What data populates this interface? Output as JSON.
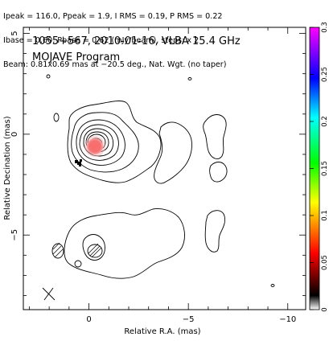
{
  "header": {
    "line1": "Ipeak = 116.0, Ppeak = 1.9, I RMS = 0.19, P RMS = 0.22",
    "line2": "Ibase = 0.60, Pbase = 0.62 (mJy/beam), steps: x 2",
    "line3": "Beam: 0.81x0.69 mas at −20.5 deg., Nat. Wgt. (no taper)"
  },
  "chart_data": {
    "type": "contour",
    "title": "1055+567, 2010-01-16, VLBA 15.4 GHz",
    "subtitle": "MOJAVE Program",
    "xlabel": "Relative R.A. (mas)",
    "ylabel": "Relative Decination (mas)",
    "xlim": [
      3.3,
      -10.9
    ],
    "ylim": [
      -8.7,
      5.3
    ],
    "x_ticks": [
      {
        "value": 0,
        "label": "0"
      },
      {
        "value": -5,
        "label": "−5"
      },
      {
        "value": -10,
        "label": "−10"
      }
    ],
    "y_ticks": [
      {
        "value": 5,
        "label": "5"
      },
      {
        "value": 0,
        "label": "0"
      },
      {
        "value": -5,
        "label": "−5"
      }
    ],
    "colorbar": {
      "range": [
        0,
        0.3
      ],
      "ticks": [
        "0",
        "0.05",
        "0.1",
        "0.15",
        "0.2",
        "0.25",
        "0.3"
      ]
    },
    "peak_position": [
      0,
      0
    ],
    "beam": {
      "major_mas": 0.81,
      "minor_mas": 0.69,
      "pa_deg": -20.5
    }
  },
  "colors": {
    "contour": "#000000",
    "polarization_red": "#ee2222"
  }
}
